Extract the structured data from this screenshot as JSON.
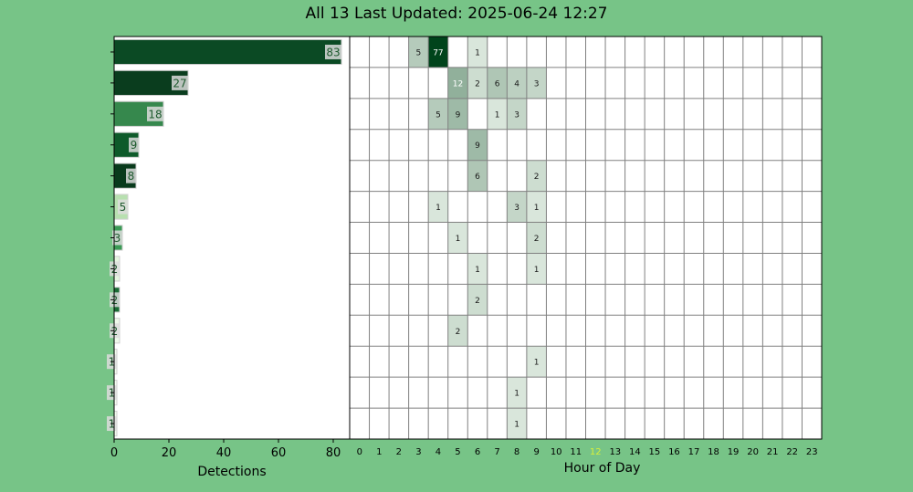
{
  "title": "All 13 Last Updated: 2025-06-24 12:27",
  "colors": {
    "background": "#77c487",
    "current_hour": "#d7f03a"
  },
  "chart_data": [
    {
      "type": "bar",
      "orientation": "horizontal",
      "xlabel": "Detections",
      "xlim": [
        0,
        86
      ],
      "xticks": [
        0,
        20,
        40,
        60,
        80
      ],
      "values": [
        83,
        27,
        18,
        9,
        8,
        5,
        3,
        2,
        2,
        2,
        1,
        1,
        1
      ],
      "bar_colors": [
        "#0b4a24",
        "#0a3d1e",
        "#36884d",
        "#0e5a2a",
        "#093a1c",
        "#b8e0b0",
        "#3a9a55",
        "#e6f5e0",
        "#1a6b35",
        "#eef8ea",
        "#f2faee",
        "#f4fbf0",
        "#f0f9ec"
      ]
    },
    {
      "type": "heatmap",
      "xlabel": "Hour of Day",
      "hours": [
        "0",
        "1",
        "2",
        "3",
        "4",
        "5",
        "6",
        "7",
        "8",
        "9",
        "10",
        "11",
        "12",
        "13",
        "14",
        "15",
        "16",
        "17",
        "18",
        "19",
        "20",
        "21",
        "22",
        "23"
      ],
      "current_hour": "12",
      "rows": 13,
      "cells": [
        {
          "row": 0,
          "hour": 3,
          "value": 5
        },
        {
          "row": 0,
          "hour": 4,
          "value": 77
        },
        {
          "row": 0,
          "hour": 6,
          "value": 1
        },
        {
          "row": 1,
          "hour": 5,
          "value": 12
        },
        {
          "row": 1,
          "hour": 6,
          "value": 2
        },
        {
          "row": 1,
          "hour": 7,
          "value": 6
        },
        {
          "row": 1,
          "hour": 8,
          "value": 4
        },
        {
          "row": 1,
          "hour": 9,
          "value": 3
        },
        {
          "row": 2,
          "hour": 4,
          "value": 5
        },
        {
          "row": 2,
          "hour": 5,
          "value": 9
        },
        {
          "row": 2,
          "hour": 7,
          "value": 1
        },
        {
          "row": 2,
          "hour": 8,
          "value": 3
        },
        {
          "row": 3,
          "hour": 6,
          "value": 9
        },
        {
          "row": 4,
          "hour": 6,
          "value": 6
        },
        {
          "row": 4,
          "hour": 9,
          "value": 2
        },
        {
          "row": 5,
          "hour": 4,
          "value": 1
        },
        {
          "row": 5,
          "hour": 8,
          "value": 3
        },
        {
          "row": 5,
          "hour": 9,
          "value": 1
        },
        {
          "row": 6,
          "hour": 5,
          "value": 1
        },
        {
          "row": 6,
          "hour": 9,
          "value": 2
        },
        {
          "row": 7,
          "hour": 6,
          "value": 1
        },
        {
          "row": 7,
          "hour": 9,
          "value": 1
        },
        {
          "row": 8,
          "hour": 6,
          "value": 2
        },
        {
          "row": 9,
          "hour": 5,
          "value": 2
        },
        {
          "row": 10,
          "hour": 9,
          "value": 1
        },
        {
          "row": 11,
          "hour": 8,
          "value": 1
        },
        {
          "row": 12,
          "hour": 8,
          "value": 1
        }
      ]
    }
  ]
}
